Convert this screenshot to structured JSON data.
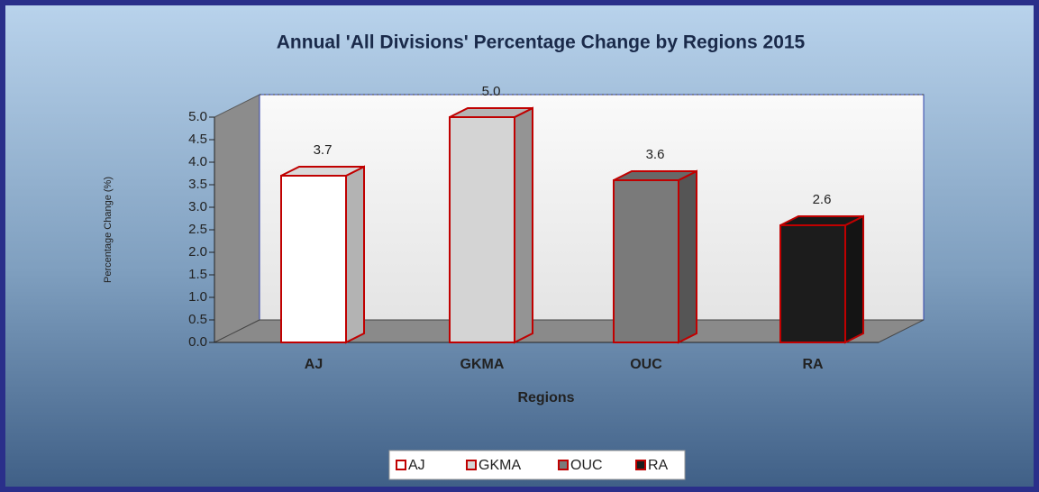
{
  "chart_data": {
    "type": "bar3d",
    "title": "Annual 'All Divisions' Percentage Change by Regions 2015",
    "y_label": "Percentage Change (%)",
    "x_label": "Regions",
    "categories": [
      "AJ",
      "GKMA",
      "OUC",
      "RA"
    ],
    "values": [
      3.7,
      5.0,
      3.6,
      2.6
    ],
    "value_labels": [
      "3.7",
      "5.0",
      "3.6",
      "2.6"
    ],
    "colors": [
      "#ffffff",
      "#d4d4d4",
      "#7a7a7a",
      "#1c1c1c"
    ],
    "edge_color": "#c00000",
    "ylim": [
      0,
      5
    ],
    "yticks": [
      {
        "value": 0,
        "label": "0.0"
      },
      0.5,
      {
        "value": 1,
        "label": "1.0"
      },
      1.5,
      {
        "value": 2,
        "label": "2.0"
      },
      2.5,
      {
        "value": 3,
        "label": "3.0"
      },
      3.5,
      {
        "value": 4,
        "label": "4.0"
      },
      4.5,
      {
        "value": 5,
        "label": "5.0"
      }
    ],
    "legend": "bottom"
  }
}
